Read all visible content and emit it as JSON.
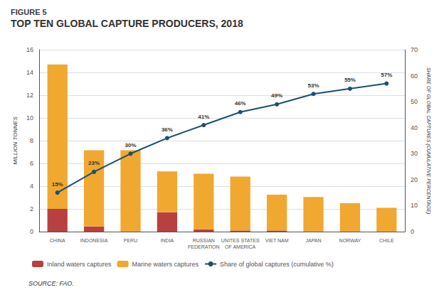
{
  "chart_data": {
    "type": "bar",
    "title": "FIGURE 5",
    "subtitle": "TOP TEN GLOBAL CAPTURE PRODUCERS, 2018",
    "ylabel": "MILLION TONNES",
    "y2label": "SHARE OF GLOBAL CAPTURES (CUMULATIVE PERCENTAGE)",
    "annotations": [
      "SOURCE: FAO."
    ],
    "categories": [
      "CHINA",
      "INDONESIA",
      "PERU",
      "INDIA",
      "RUSSIAN\nFEDERATION",
      "UNITES STATES\nOF AMERICA",
      "VIET NAM",
      "JAPAN",
      "NORWAY",
      "CHILE"
    ],
    "stacked": true,
    "grid": true,
    "legend": "lower left",
    "ylim": [
      0,
      16
    ],
    "yticks": [
      0,
      2,
      4,
      6,
      8,
      10,
      12,
      14,
      16
    ],
    "y2lim": [
      0,
      70
    ],
    "y2ticks": [
      0,
      10,
      20,
      30,
      40,
      50,
      60,
      70
    ],
    "series": [
      {
        "name": "Inland waters captures",
        "type": "bar",
        "color": "#b94040",
        "values": [
          2.0,
          0.45,
          0.0,
          1.7,
          0.2,
          0.1,
          0.1,
          0.0,
          0.0,
          0.0
        ]
      },
      {
        "name": "Marine waters captures",
        "type": "bar",
        "color": "#f0a830",
        "values": [
          12.7,
          6.7,
          7.15,
          3.6,
          4.9,
          4.75,
          3.15,
          3.05,
          2.5,
          2.1
        ]
      },
      {
        "name": "Share of global captures (cumulative %)",
        "type": "line",
        "axis": "y2",
        "color": "#1a4f72",
        "marker": "circle",
        "values": [
          15,
          23,
          30,
          36,
          41,
          46,
          49,
          53,
          55,
          57
        ],
        "value_labels": [
          "15%",
          "23%",
          "30%",
          "36%",
          "41%",
          "46%",
          "49%",
          "53%",
          "55%",
          "57%"
        ]
      }
    ]
  }
}
